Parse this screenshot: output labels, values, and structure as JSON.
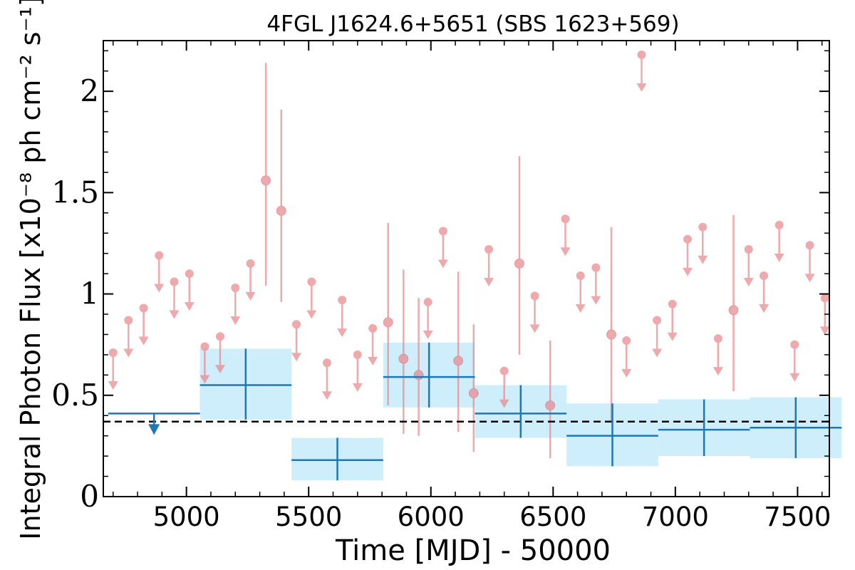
{
  "chart_data": {
    "type": "scatter",
    "title": "4FGL J1624.6+5651 (SBS 1623+569)",
    "xlabel": "Time [MJD] - 50000",
    "ylabel": "Integral Photon Flux [x10⁻⁸ ph cm⁻² s⁻¹]",
    "xlim": [
      4660,
      7630
    ],
    "ylim": [
      0,
      2.25
    ],
    "xticks": [
      5000,
      5500,
      6000,
      6500,
      7000,
      7500
    ],
    "xtick_labels": [
      "5000",
      "5500",
      "6000",
      "6500",
      "7000",
      "7500"
    ],
    "yticks": [
      0,
      0.5,
      1,
      1.5,
      2
    ],
    "ytick_labels": [
      "0",
      "0.5",
      "1",
      "1.5",
      "2"
    ],
    "baseline": {
      "value": 0.37,
      "style": "dashed",
      "color": "#000000"
    },
    "colors": {
      "short_bins": "#e8868b",
      "long_bins": "#1f77b4",
      "band": "#cfeefc"
    },
    "series": [
      {
        "bin": "short",
        "upper_limits": [
          [
            4700,
            0.71
          ],
          [
            4763,
            0.87
          ],
          [
            4825,
            0.93
          ],
          [
            4888,
            1.19
          ],
          [
            4950,
            1.06
          ],
          [
            5012,
            1.1
          ],
          [
            5075,
            0.74
          ],
          [
            5138,
            0.79
          ],
          [
            5200,
            1.03
          ],
          [
            5262,
            1.15
          ],
          [
            5450,
            0.85
          ],
          [
            5512,
            1.06
          ],
          [
            5575,
            0.66
          ],
          [
            5637,
            0.97
          ],
          [
            5700,
            0.7
          ],
          [
            5762,
            0.83
          ],
          [
            5988,
            0.96
          ],
          [
            6050,
            1.31
          ],
          [
            6237,
            1.22
          ],
          [
            6300,
            0.62
          ],
          [
            6425,
            0.99
          ],
          [
            6550,
            1.37
          ],
          [
            6612,
            1.09
          ],
          [
            6675,
            1.13
          ],
          [
            6800,
            0.77
          ],
          [
            6862,
            2.18
          ],
          [
            6925,
            0.87
          ],
          [
            6988,
            0.95
          ],
          [
            7050,
            1.27
          ],
          [
            7112,
            1.33
          ],
          [
            7175,
            0.78
          ],
          [
            7300,
            1.22
          ],
          [
            7362,
            1.09
          ],
          [
            7425,
            1.34
          ],
          [
            7488,
            0.75
          ],
          [
            7550,
            1.24
          ],
          [
            7612,
            0.98
          ]
        ],
        "points": [
          {
            "x": 5325,
            "y": 1.56,
            "lo": 1.04,
            "hi": 2.14
          },
          {
            "x": 5388,
            "y": 1.41,
            "lo": 0.96,
            "hi": 1.91
          },
          {
            "x": 5825,
            "y": 0.86,
            "lo": 0.45,
            "hi": 1.35
          },
          {
            "x": 5888,
            "y": 0.68,
            "lo": 0.31,
            "hi": 1.12
          },
          {
            "x": 5950,
            "y": 0.6,
            "lo": 0.3,
            "hi": 0.98
          },
          {
            "x": 6112,
            "y": 0.67,
            "lo": 0.32,
            "hi": 1.11
          },
          {
            "x": 6175,
            "y": 0.51,
            "lo": 0.22,
            "hi": 0.85
          },
          {
            "x": 6362,
            "y": 1.15,
            "lo": 0.7,
            "hi": 1.68
          },
          {
            "x": 6488,
            "y": 0.45,
            "lo": 0.19,
            "hi": 0.77
          },
          {
            "x": 6738,
            "y": 0.8,
            "lo": 0.37,
            "hi": 1.33
          },
          {
            "x": 7238,
            "y": 0.92,
            "lo": 0.52,
            "hi": 1.39
          }
        ]
      },
      {
        "bin": "long",
        "upper_limits": [
          {
            "x0": 4680,
            "x1": 5055,
            "y": 0.41
          }
        ],
        "points": [
          {
            "x0": 5055,
            "x1": 5430,
            "y": 0.55,
            "lo": 0.38,
            "hi": 0.73
          },
          {
            "x0": 5430,
            "x1": 5805,
            "y": 0.18,
            "lo": 0.08,
            "hi": 0.29
          },
          {
            "x0": 5805,
            "x1": 6180,
            "y": 0.59,
            "lo": 0.44,
            "hi": 0.76
          },
          {
            "x0": 6180,
            "x1": 6555,
            "y": 0.41,
            "lo": 0.29,
            "hi": 0.55
          },
          {
            "x0": 6555,
            "x1": 6930,
            "y": 0.3,
            "lo": 0.15,
            "hi": 0.46
          },
          {
            "x0": 6930,
            "x1": 7305,
            "y": 0.33,
            "lo": 0.2,
            "hi": 0.48
          },
          {
            "x0": 7305,
            "x1": 7680,
            "y": 0.34,
            "lo": 0.19,
            "hi": 0.49
          }
        ]
      }
    ]
  }
}
